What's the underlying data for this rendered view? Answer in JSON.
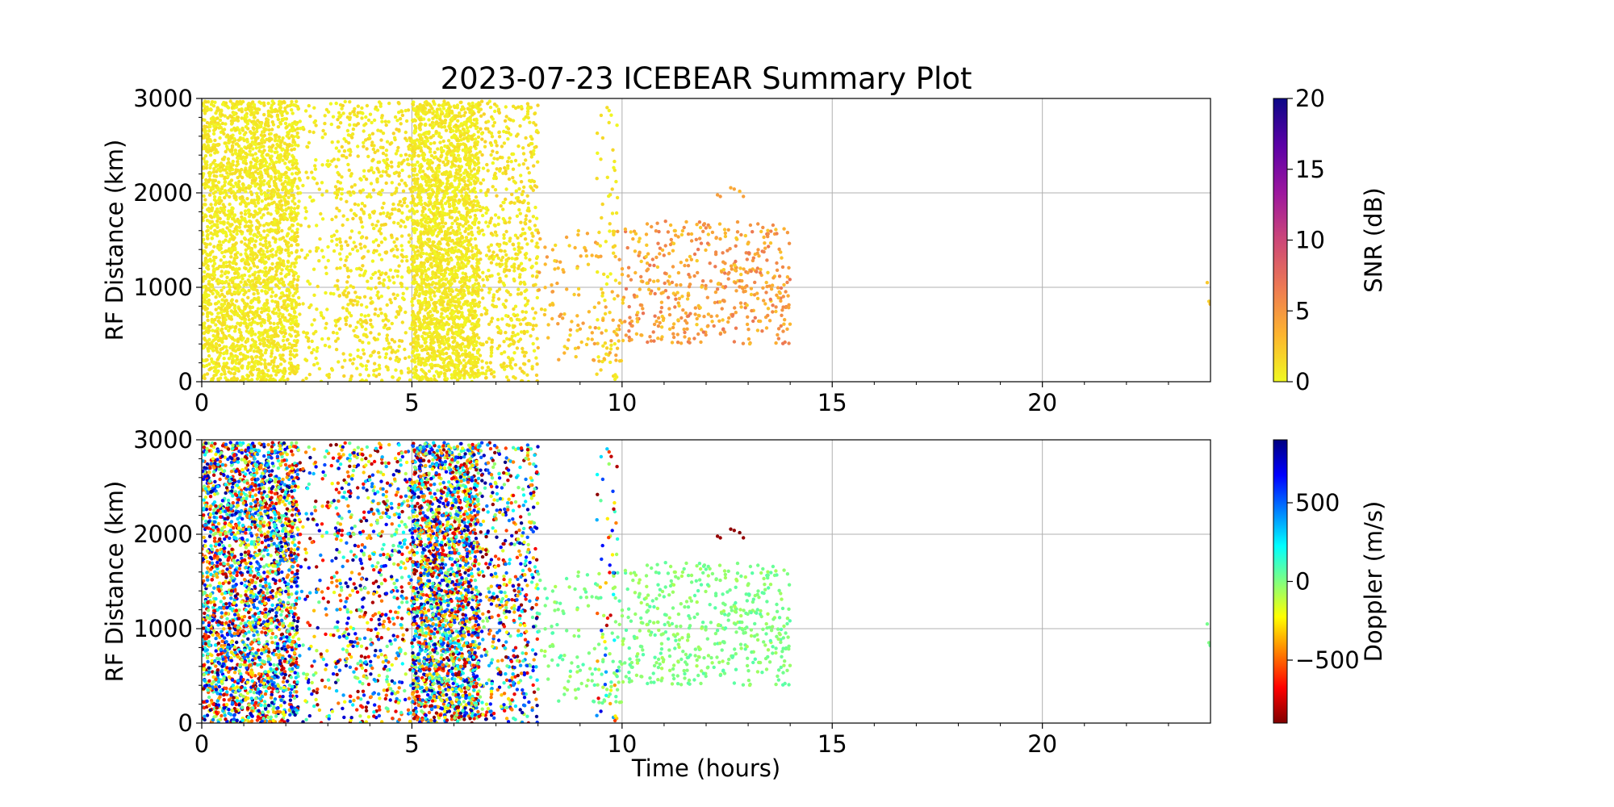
{
  "title": "2023-07-23 ICEBEAR Summary Plot",
  "colors": {
    "grid": "#b0b0b0",
    "axis": "#000000",
    "background": "#ffffff"
  },
  "chart_data": [
    {
      "type": "scatter",
      "panel": "top",
      "title": "2023-07-23 ICEBEAR Summary Plot",
      "xlabel": "",
      "ylabel": "RF Distance (km)",
      "xlim": [
        0,
        24
      ],
      "ylim": [
        0,
        3000
      ],
      "xticks": [
        0,
        5,
        10,
        15,
        20
      ],
      "yticks": [
        0,
        1000,
        2000,
        3000
      ],
      "grid": true,
      "color_by": "SNR (dB)",
      "colorbar": {
        "label": "SNR (dB)",
        "colormap": "plasma_r",
        "range": [
          0,
          20
        ],
        "ticks": [
          0,
          5,
          10,
          15,
          20
        ],
        "stops": [
          "#f0f921",
          "#fdb42f",
          "#ed7953",
          "#cc4778",
          "#9c179e",
          "#5c01a6",
          "#0d0887"
        ]
      },
      "point_groups": [
        {
          "x_range": [
            0.0,
            2.3
          ],
          "y_range": [
            0,
            2970
          ],
          "count": 2600,
          "value_range": [
            0,
            1.5
          ]
        },
        {
          "x_range": [
            2.3,
            3.2
          ],
          "y_range": [
            0,
            2970
          ],
          "count": 150,
          "value_range": [
            0,
            1.5
          ]
        },
        {
          "x_range": [
            3.2,
            5.0
          ],
          "y_range": [
            0,
            2970
          ],
          "count": 650,
          "value_range": [
            0,
            2
          ]
        },
        {
          "x_range": [
            5.0,
            6.6
          ],
          "y_range": [
            0,
            2970
          ],
          "count": 2200,
          "value_range": [
            0,
            1.5
          ]
        },
        {
          "x_range": [
            6.6,
            8.0
          ],
          "y_range": [
            0,
            2970
          ],
          "count": 550,
          "value_range": [
            0,
            2
          ]
        },
        {
          "x_range": [
            8.0,
            10.0
          ],
          "y_range": [
            200,
            1600
          ],
          "count": 130,
          "value_range": [
            1,
            5
          ]
        },
        {
          "x_range": [
            9.4,
            9.9
          ],
          "y_range": [
            0,
            2970
          ],
          "count": 60,
          "value_range": [
            0,
            2
          ]
        },
        {
          "x_range": [
            10.0,
            14.0
          ],
          "y_range": [
            400,
            1700
          ],
          "count": 480,
          "value_range": [
            2,
            7
          ]
        },
        {
          "x_range": [
            12.2,
            13.2
          ],
          "y_range": [
            1950,
            2070
          ],
          "count": 6,
          "value_range": [
            3,
            5
          ]
        },
        {
          "x_range": [
            23.9,
            24.0
          ],
          "y_range": [
            780,
            1120
          ],
          "count": 3,
          "value_range": [
            1,
            3
          ]
        }
      ]
    },
    {
      "type": "scatter",
      "panel": "bottom",
      "title": "",
      "xlabel": "Time (hours)",
      "ylabel": "RF Distance (km)",
      "xlim": [
        0,
        24
      ],
      "ylim": [
        0,
        3000
      ],
      "xticks": [
        0,
        5,
        10,
        15,
        20
      ],
      "yticks": [
        0,
        1000,
        2000,
        3000
      ],
      "grid": true,
      "color_by": "Doppler (m/s)",
      "colorbar": {
        "label": "Doppler (m/s)",
        "colormap": "jet_r",
        "range": [
          -900,
          900
        ],
        "ticks": [
          -500,
          0,
          500
        ],
        "tick_labels": [
          "−500",
          "0",
          "500"
        ],
        "stops": [
          "#800000",
          "#ff0000",
          "#ff8000",
          "#ffff00",
          "#80ff80",
          "#00ffff",
          "#0080ff",
          "#0000ff",
          "#000080"
        ]
      },
      "point_groups": [
        {
          "x_range": [
            0.0,
            2.3
          ],
          "y_range": [
            0,
            2970
          ],
          "count": 2600,
          "value_range": [
            -900,
            900
          ]
        },
        {
          "x_range": [
            2.3,
            3.2
          ],
          "y_range": [
            0,
            2970
          ],
          "count": 150,
          "value_range": [
            -900,
            900
          ]
        },
        {
          "x_range": [
            3.2,
            5.0
          ],
          "y_range": [
            0,
            2970
          ],
          "count": 650,
          "value_range": [
            -900,
            900
          ]
        },
        {
          "x_range": [
            5.0,
            6.6
          ],
          "y_range": [
            0,
            2970
          ],
          "count": 2200,
          "value_range": [
            -900,
            900
          ]
        },
        {
          "x_range": [
            6.6,
            8.0
          ],
          "y_range": [
            0,
            2970
          ],
          "count": 550,
          "value_range": [
            -900,
            900
          ]
        },
        {
          "x_range": [
            8.0,
            10.0
          ],
          "y_range": [
            200,
            1600
          ],
          "count": 130,
          "value_range": [
            -100,
            100
          ]
        },
        {
          "x_range": [
            9.4,
            9.9
          ],
          "y_range": [
            0,
            2970
          ],
          "count": 60,
          "value_range": [
            -900,
            900
          ]
        },
        {
          "x_range": [
            10.0,
            14.0
          ],
          "y_range": [
            400,
            1700
          ],
          "count": 480,
          "value_range": [
            -80,
            80
          ]
        },
        {
          "x_range": [
            12.2,
            13.2
          ],
          "y_range": [
            1950,
            2070
          ],
          "count": 6,
          "value_range": [
            -900,
            -850
          ]
        },
        {
          "x_range": [
            23.9,
            24.0
          ],
          "y_range": [
            780,
            1120
          ],
          "count": 3,
          "value_range": [
            -50,
            50
          ]
        }
      ]
    }
  ]
}
